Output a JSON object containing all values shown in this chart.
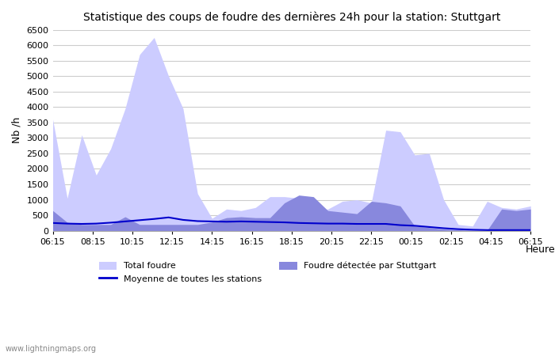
{
  "title": "Statistique des coups de foudre des dernières 24h pour la station: Stuttgart",
  "ylabel": "Nb /h",
  "xlabel": "Heure",
  "watermark": "www.lightningmaps.org",
  "x_labels": [
    "06:15",
    "08:15",
    "10:15",
    "12:15",
    "14:15",
    "16:15",
    "18:15",
    "20:15",
    "22:15",
    "00:15",
    "02:15",
    "04:15",
    "06:15"
  ],
  "ylim": [
    0,
    6500
  ],
  "yticks": [
    0,
    500,
    1000,
    1500,
    2000,
    2500,
    3000,
    3500,
    4000,
    4500,
    5000,
    5500,
    6000,
    6500
  ],
  "total_foudre": [
    3600,
    1050,
    3100,
    1800,
    2650,
    3950,
    5700,
    6250,
    5000,
    3950,
    1200,
    400,
    700,
    650,
    750,
    1100,
    1100,
    1050,
    650,
    700,
    950,
    1000,
    900,
    3250,
    3200,
    2450,
    2500,
    1000,
    200,
    150,
    950,
    750,
    700,
    800
  ],
  "local_foudre": [
    650,
    270,
    200,
    200,
    200,
    450,
    200,
    200,
    200,
    200,
    200,
    280,
    420,
    450,
    420,
    420,
    900,
    1150,
    1100,
    650,
    600,
    550,
    950,
    900,
    800,
    150,
    100,
    50,
    30,
    10,
    10,
    700,
    650,
    700
  ],
  "moyenne": [
    250,
    230,
    220,
    230,
    260,
    300,
    340,
    380,
    430,
    350,
    310,
    300,
    290,
    300,
    290,
    280,
    270,
    250,
    240,
    230,
    230,
    220,
    220,
    220,
    180,
    160,
    120,
    80,
    50,
    30,
    20,
    20,
    20,
    20
  ],
  "color_total": "#ccccff",
  "color_local": "#8888dd",
  "color_moyenne": "#0000cc",
  "bg_color": "#ffffff",
  "grid_color": "#cccccc",
  "n_points": 34,
  "legend_loc": "lower center"
}
